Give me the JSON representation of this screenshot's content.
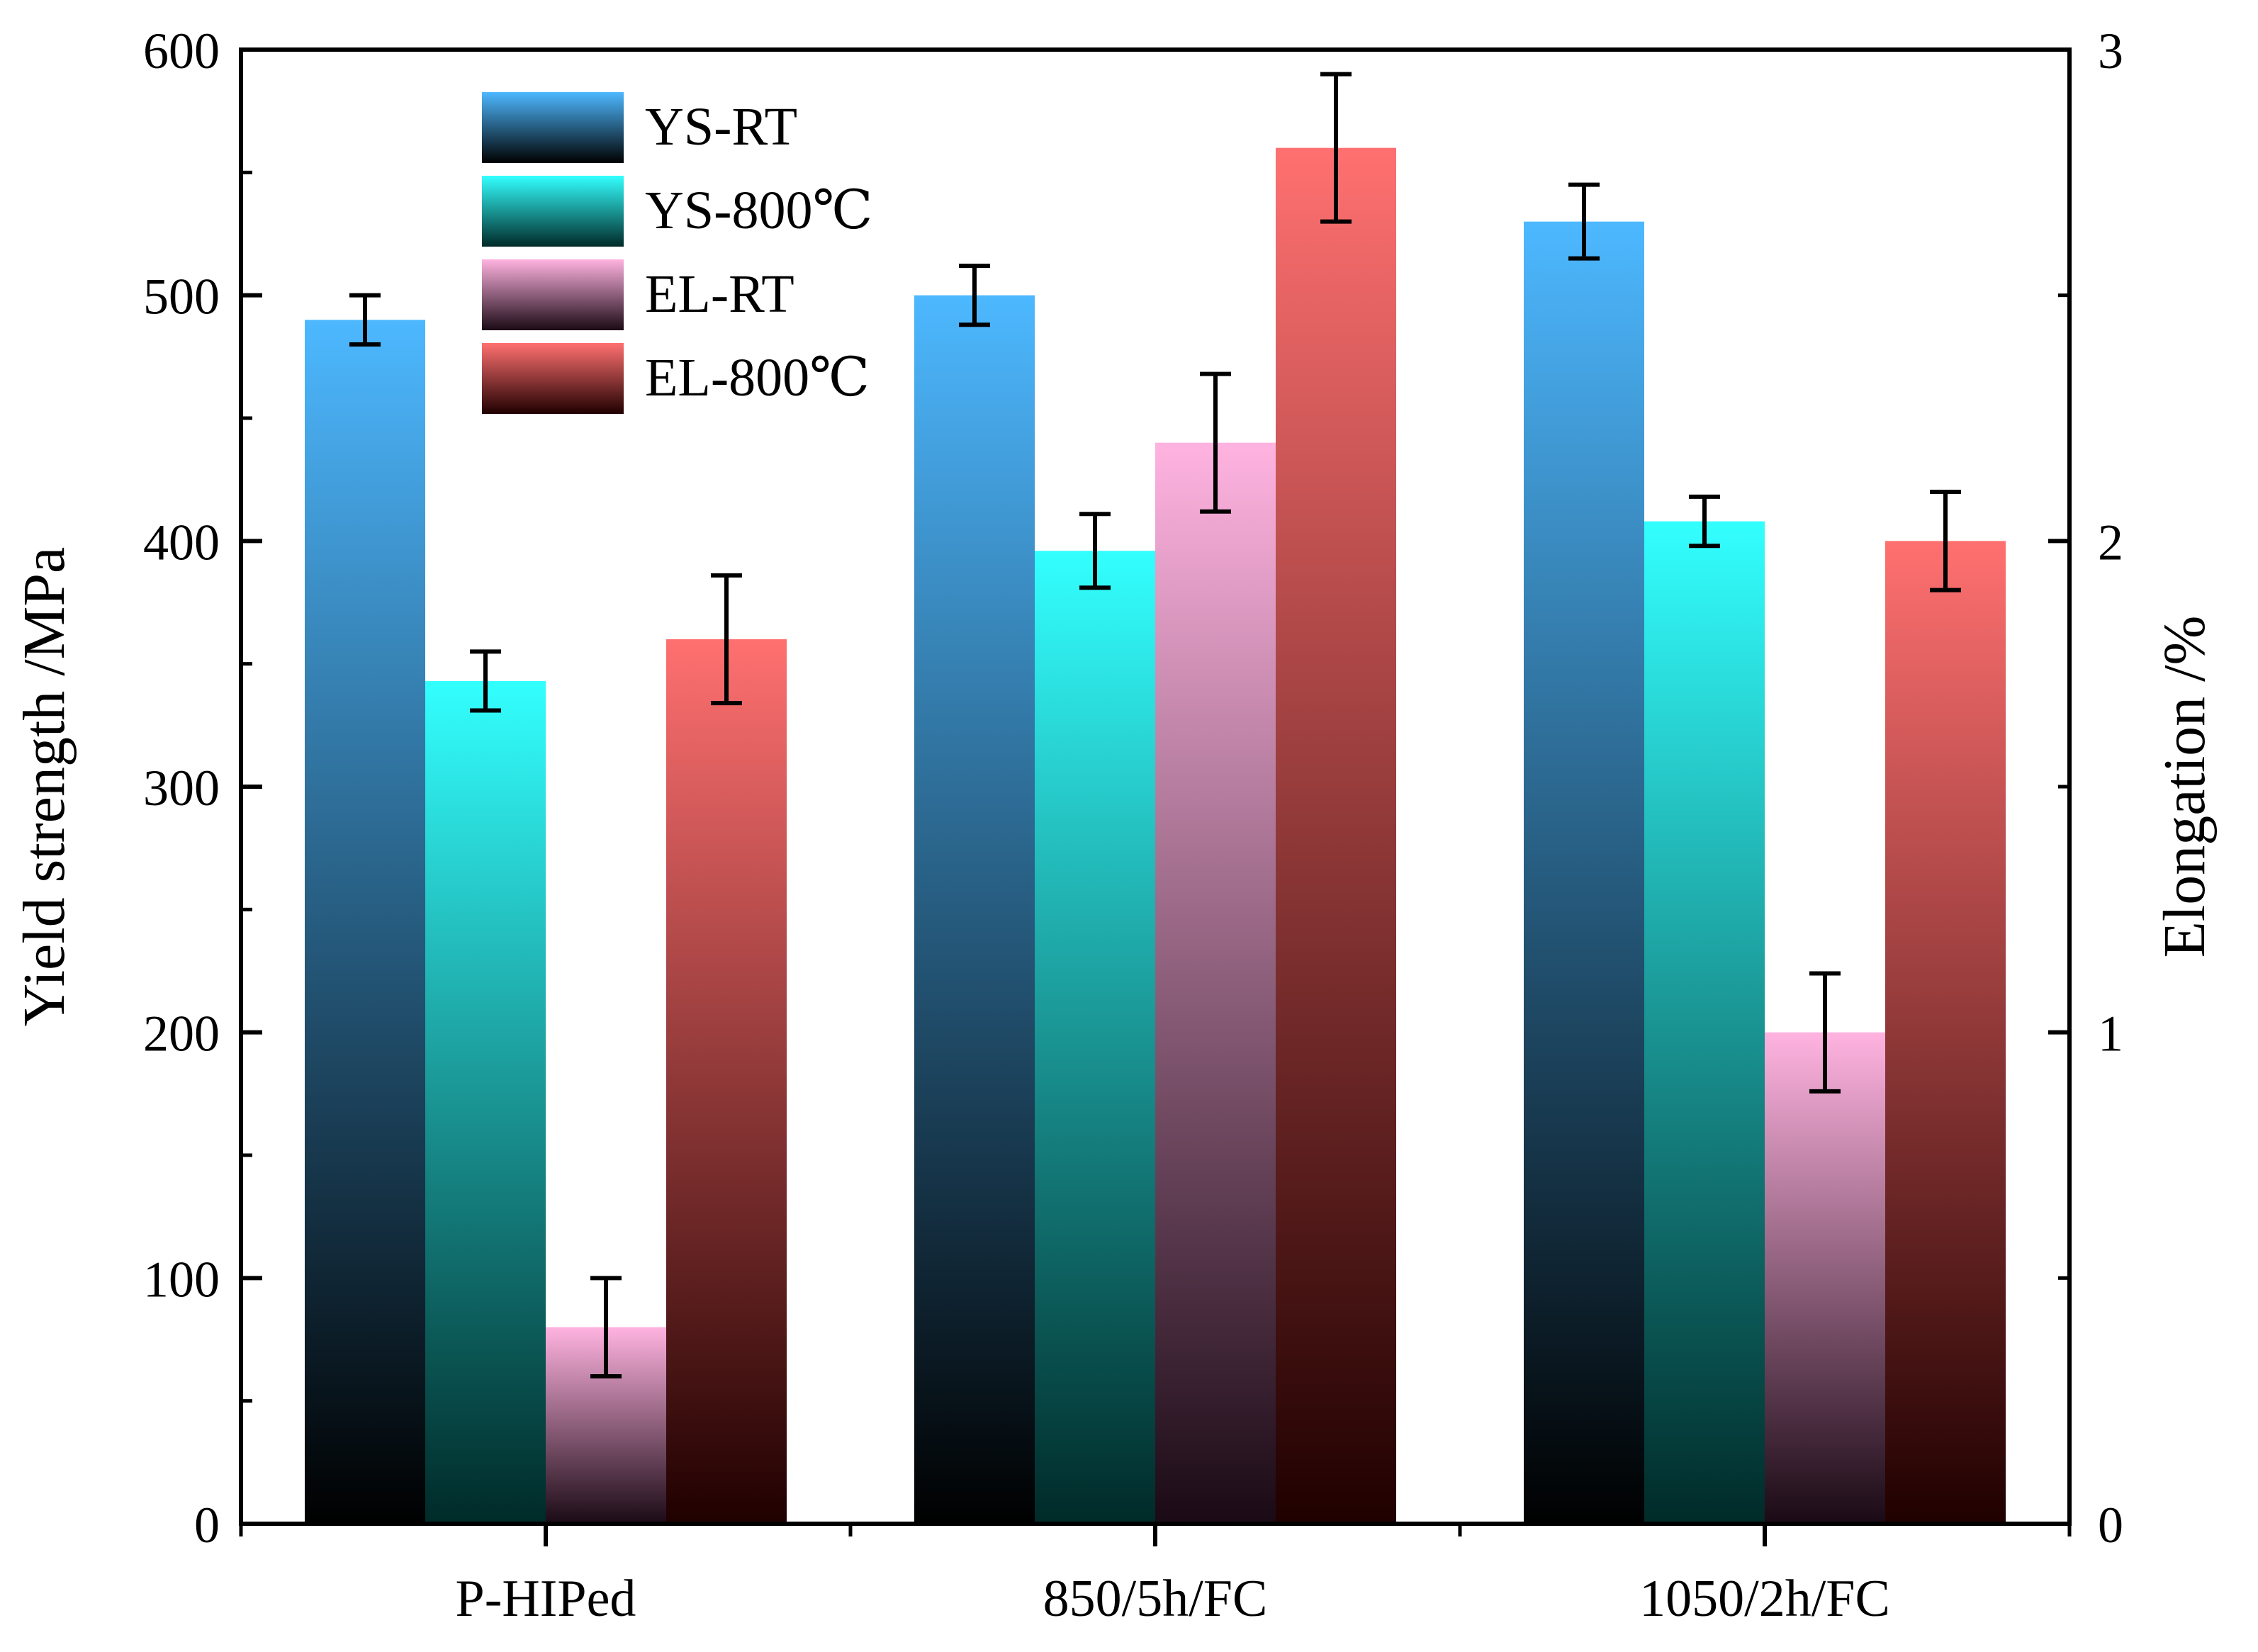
{
  "chart_data": {
    "type": "bar",
    "categories": [
      "P-HIPed",
      "850/5h/FC",
      "1050/2h/FC"
    ],
    "left_axis": {
      "label": "Yield strength /MPa",
      "ylim": [
        0,
        600
      ],
      "ticks": [
        "0",
        "100",
        "200",
        "300",
        "400",
        "500",
        "600"
      ],
      "tick_values": [
        0,
        100,
        200,
        300,
        400,
        500,
        600
      ]
    },
    "right_axis": {
      "label": "Elongation /%",
      "ylim": [
        0,
        3
      ],
      "ticks": [
        "0",
        "1",
        "2",
        "3"
      ],
      "tick_values": [
        0,
        1,
        2,
        3
      ]
    },
    "series": [
      {
        "name": "YS-RT",
        "axis": "left",
        "values": [
          490,
          500,
          530
        ],
        "errors": [
          10,
          12,
          15
        ],
        "color_top": "#4db8ff",
        "color_bottom": "#000000"
      },
      {
        "name": "YS-800℃",
        "axis": "left",
        "values": [
          343,
          396,
          408
        ],
        "errors": [
          12,
          15,
          10
        ],
        "color_top": "#33ffff",
        "color_bottom": "#002a28"
      },
      {
        "name": "EL-RT",
        "axis": "right",
        "values": [
          0.4,
          2.2,
          1.0
        ],
        "errors": [
          0.1,
          0.14,
          0.12
        ],
        "color_top": "#ffb3e0",
        "color_bottom": "#1a0a15"
      },
      {
        "name": "EL-800℃",
        "axis": "right",
        "values": [
          1.8,
          2.8,
          2.0
        ],
        "errors": [
          0.13,
          0.15,
          0.1
        ],
        "color_top": "#ff7070",
        "color_bottom": "#200000"
      }
    ],
    "legend_position": "top-left",
    "grid": false
  }
}
